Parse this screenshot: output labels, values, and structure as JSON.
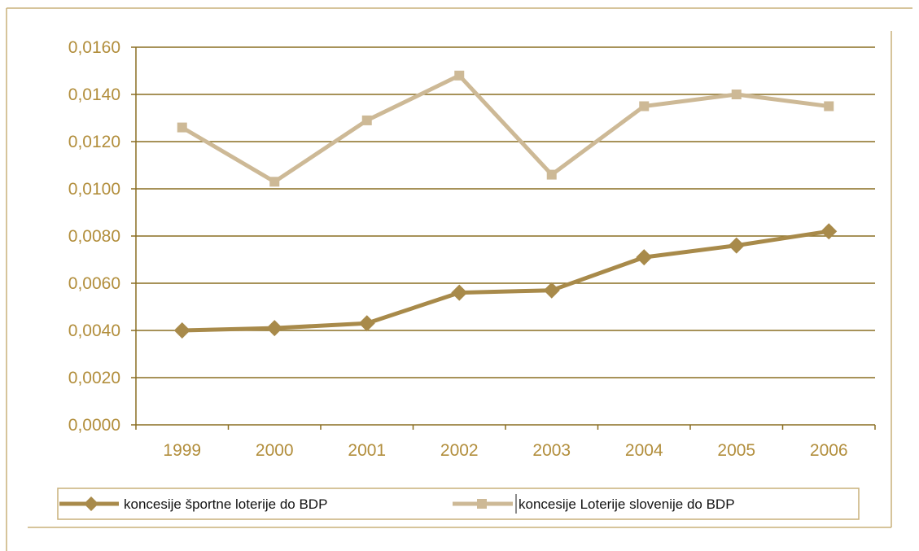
{
  "chart_data": {
    "type": "line",
    "title": "",
    "xlabel": "",
    "ylabel": "",
    "categories": [
      "1999",
      "2000",
      "2001",
      "2002",
      "2003",
      "2004",
      "2005",
      "2006"
    ],
    "ylim": [
      0,
      0.016
    ],
    "yticks": [
      "0,0000",
      "0,0020",
      "0,0040",
      "0,0060",
      "0,0080",
      "0,0100",
      "0,0120",
      "0,0140",
      "0,0160"
    ],
    "grid": true,
    "legend_position": "bottom",
    "series": [
      {
        "name": "koncesije športne loterije do BDP",
        "marker": "diamond",
        "color": "#a88a4a",
        "values": [
          0.004,
          0.0041,
          0.0043,
          0.0056,
          0.0057,
          0.0071,
          0.0076,
          0.0082
        ]
      },
      {
        "name": "koncesije Loterije slovenije do BDP",
        "marker": "square",
        "color": "#cdb996",
        "values": [
          0.0126,
          0.0103,
          0.0129,
          0.0148,
          0.0106,
          0.0135,
          0.014,
          0.0135
        ]
      }
    ],
    "colors": {
      "axis": "#8a6e22",
      "grid": "#8a6e22",
      "tick_text": "#b28e3c",
      "frame": "#c8b07a"
    }
  }
}
